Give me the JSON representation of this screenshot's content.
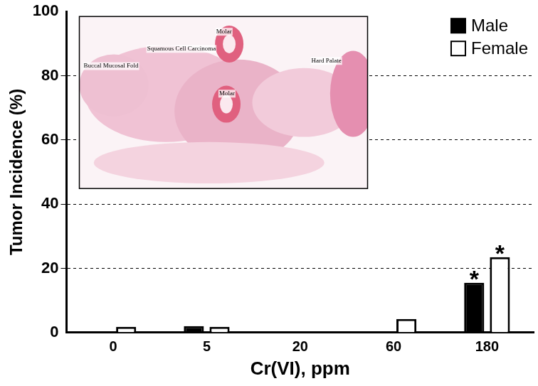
{
  "chart_data": {
    "type": "bar",
    "x_label": "Cr(VI), ppm",
    "y_label": "Tumor Incidence (%)",
    "categories": [
      "0",
      "5",
      "20",
      "60",
      "180"
    ],
    "series": [
      {
        "name": "Male",
        "color": "#000000",
        "values": [
          0,
          2,
          0,
          0,
          15.5
        ]
      },
      {
        "name": "Female",
        "color": "#ffffff",
        "values": [
          1.8,
          1.8,
          0,
          4.2,
          23.5
        ]
      }
    ],
    "ylim": [
      0,
      100
    ],
    "yticks": [
      0,
      20,
      40,
      60,
      80,
      100
    ],
    "grid": true,
    "legend": "upper right",
    "annotations": [
      {
        "series": "Male",
        "category": "180",
        "text": "*"
      },
      {
        "series": "Female",
        "category": "180",
        "text": "*"
      },
      {
        "text": "Buccal Mucosal Fold"
      },
      {
        "text": "Squamous Cell Carcinoma"
      },
      {
        "text": "Molar"
      },
      {
        "text": "Molar"
      },
      {
        "text": "Hard Palate"
      }
    ]
  }
}
